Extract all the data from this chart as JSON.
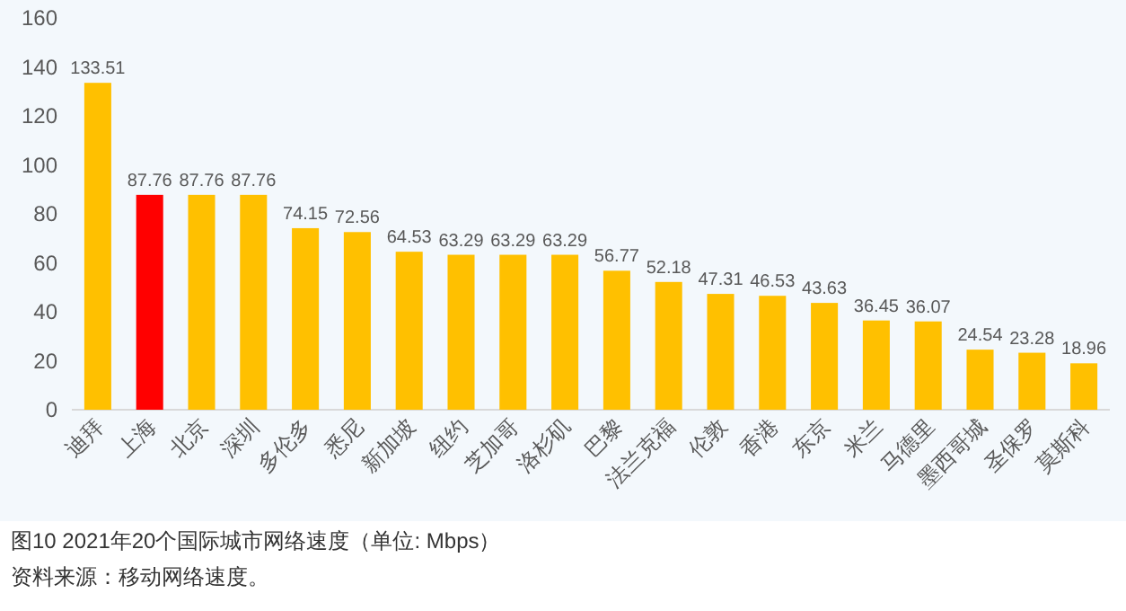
{
  "chart_data": {
    "type": "bar",
    "title": "图10  2021年20个国际城市网络速度（单位: Mbps）",
    "annotations": [
      "资料来源：移动网络速度。"
    ],
    "categories": [
      "迪拜",
      "上海",
      "北京",
      "深圳",
      "多伦多",
      "悉尼",
      "新加坡",
      "纽约",
      "芝加哥",
      "洛杉矶",
      "巴黎",
      "法兰克福",
      "伦敦",
      "香港",
      "东京",
      "米兰",
      "马德里",
      "墨西哥城",
      "圣保罗",
      "莫斯科"
    ],
    "values": [
      133.51,
      87.76,
      87.76,
      87.76,
      74.15,
      72.56,
      64.53,
      63.29,
      63.29,
      63.29,
      56.77,
      52.18,
      47.31,
      46.53,
      43.63,
      36.45,
      36.07,
      24.54,
      23.28,
      18.96
    ],
    "colors": [
      "#ffc000",
      "#ff0000",
      "#ffc000",
      "#ffc000",
      "#ffc000",
      "#ffc000",
      "#ffc000",
      "#ffc000",
      "#ffc000",
      "#ffc000",
      "#ffc000",
      "#ffc000",
      "#ffc000",
      "#ffc000",
      "#ffc000",
      "#ffc000",
      "#ffc000",
      "#ffc000",
      "#ffc000",
      "#ffc000"
    ],
    "ylim": [
      0,
      160
    ],
    "yticks": [
      0,
      20,
      40,
      60,
      80,
      100,
      120,
      140,
      160
    ],
    "data_labels": true,
    "grid": false
  }
}
